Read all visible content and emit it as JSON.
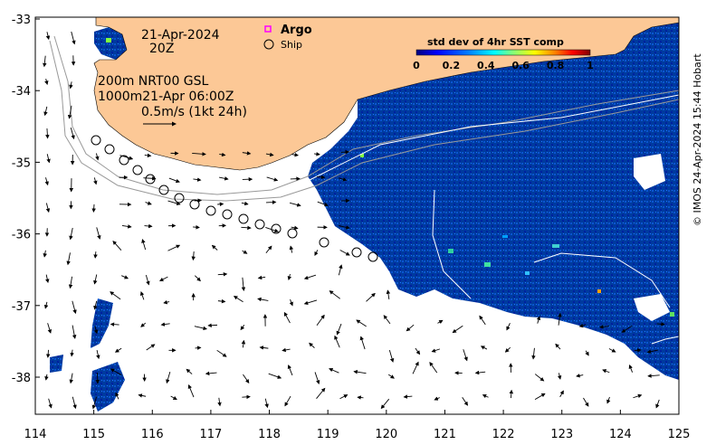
{
  "map": {
    "date_line": "21-Apr-2024",
    "time_line": "20Z",
    "model_line_1": "200m  NRT00 GSL",
    "model_line_2": "1000m21-Apr 06:00Z",
    "vector_scale_label": "0.5m/s (1kt 24h)",
    "legend_argo": "Argo",
    "legend_ship": "Ship",
    "colorbar_title": "std dev of 4hr SST comp",
    "colorbar_ticks": [
      "0",
      "0.2",
      "0.4",
      "0.6",
      "0.8",
      "1"
    ],
    "colorbar_colors": [
      "#00007f",
      "#0000ff",
      "#007fff",
      "#00ffff",
      "#7fff7f",
      "#ffff00",
      "#ff7f00",
      "#ff0000",
      "#7f0000"
    ],
    "lon_ticks": [
      "114",
      "115",
      "116",
      "117",
      "118",
      "119",
      "120",
      "121",
      "122",
      "123",
      "124",
      "125"
    ],
    "lat_ticks": [
      "-33",
      "-34",
      "-35",
      "-36",
      "-37",
      "-38"
    ],
    "credit": "© IMOS 24-Apr-2024 15:44 Hobart",
    "colors": {
      "land": "#fcc896",
      "ocean": "#ffffff",
      "sst_dark": "#003a9e",
      "argo": "#ff00ff"
    }
  }
}
